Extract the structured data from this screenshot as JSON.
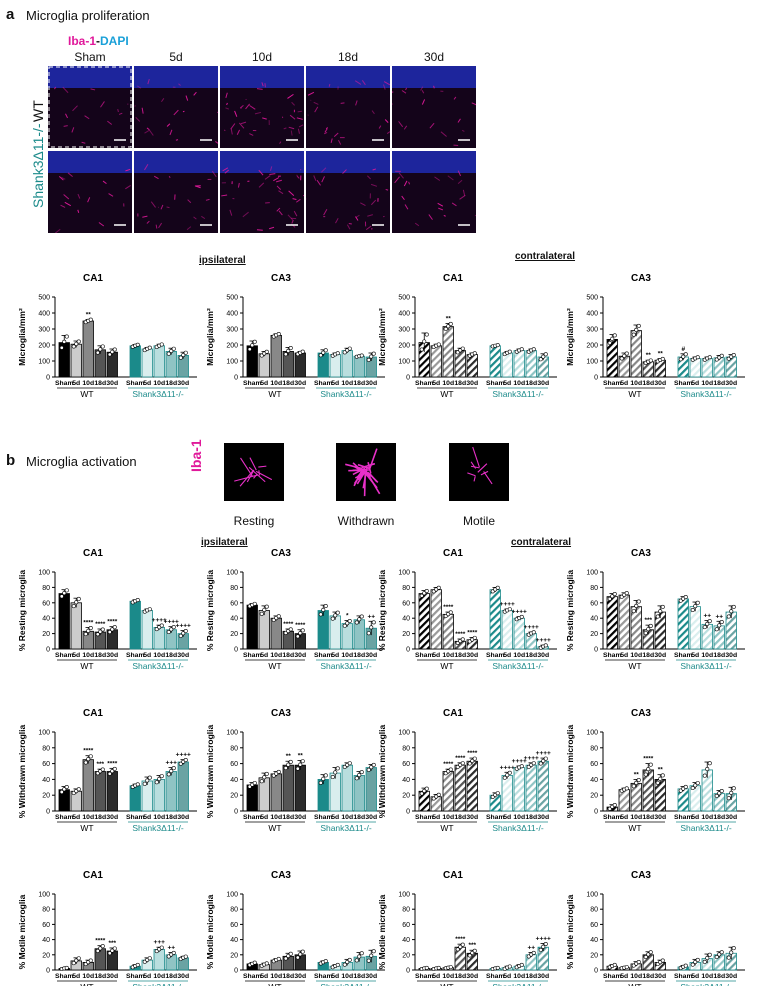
{
  "panel_a": {
    "letter": "a",
    "title": "Microglia proliferation",
    "stain_iba": "Iba-1",
    "stain_sep": "-",
    "stain_dapi": "DAPI",
    "columns": [
      "Sham",
      "5d",
      "10d",
      "18d",
      "30d"
    ],
    "rows": [
      "WT",
      "Shank3Δ11-/-"
    ],
    "region_ipsi": "ipsilateral",
    "region_contra": "contralateral"
  },
  "panel_b": {
    "letter": "b",
    "title": "Microglia activation",
    "stain": "Iba-1",
    "morphologies": [
      "Resting",
      "Withdrawn",
      "Motile"
    ],
    "region_ipsi": "ipsilateral",
    "region_contra": "contralateral"
  },
  "colors": {
    "magenta": "#e0189a",
    "dapi": "#1aa0d8",
    "teal": "#1b8a8a",
    "wt_shades": [
      "#000000",
      "#cccccc",
      "#888888",
      "#555555",
      "#2b2b2b"
    ],
    "ko_shades": [
      "#1b8a8a",
      "#d9eeee",
      "#b9dede",
      "#8fc4c4",
      "#6aa3a3"
    ]
  },
  "chart_data": [
    {
      "type": "bar",
      "title": "CA1",
      "ylabel": "Microglia/mm²",
      "ylim": [
        0,
        500
      ],
      "yticks": [
        0,
        100,
        200,
        300,
        400,
        500
      ],
      "side": "ipsilateral",
      "hatched": false,
      "groups": [
        "WT",
        "Shank3Δ11-/-"
      ],
      "categories": [
        "Sham",
        "5d",
        "10d",
        "18d",
        "30d",
        "Sham",
        "5d",
        "10d",
        "18d",
        "30d"
      ],
      "values": [
        215,
        205,
        350,
        170,
        155,
        195,
        175,
        195,
        160,
        135
      ],
      "errors": [
        45,
        20,
        10,
        25,
        20,
        8,
        10,
        10,
        20,
        20
      ],
      "annotations": [
        "",
        "",
        "**",
        "",
        "",
        "",
        "",
        "",
        "",
        ""
      ]
    },
    {
      "type": "bar",
      "title": "CA3",
      "ylabel": "Microglia/mm²",
      "ylim": [
        0,
        500
      ],
      "yticks": [
        0,
        100,
        200,
        300,
        400,
        500
      ],
      "side": "ipsilateral",
      "hatched": false,
      "groups": [
        "WT",
        "Shank3Δ11-/-"
      ],
      "categories": [
        "Sham",
        "5d",
        "10d",
        "18d",
        "30d",
        "Sham",
        "5d",
        "10d",
        "18d",
        "30d"
      ],
      "values": [
        195,
        145,
        260,
        160,
        150,
        150,
        140,
        165,
        130,
        125
      ],
      "errors": [
        30,
        15,
        10,
        25,
        10,
        20,
        10,
        15,
        5,
        25
      ],
      "annotations": [
        "",
        "",
        "",
        "",
        "",
        "",
        "",
        "",
        "",
        ""
      ]
    },
    {
      "type": "bar",
      "title": "CA1",
      "ylabel": "Microglia/mm²",
      "ylim": [
        0,
        500
      ],
      "yticks": [
        0,
        100,
        200,
        300,
        400,
        500
      ],
      "side": "contralateral",
      "hatched": true,
      "groups": [
        "WT",
        "Shank3Δ11-/-"
      ],
      "categories": [
        "Sham",
        "5d",
        "10d",
        "18d",
        "30d",
        "Sham",
        "5d",
        "10d",
        "18d",
        "30d"
      ],
      "values": [
        215,
        195,
        315,
        165,
        140,
        195,
        150,
        165,
        165,
        125
      ],
      "errors": [
        60,
        10,
        20,
        15,
        10,
        5,
        10,
        10,
        10,
        20
      ],
      "annotations": [
        "",
        "",
        "**",
        "",
        "",
        "",
        "",
        "",
        "",
        ""
      ]
    },
    {
      "type": "bar",
      "title": "CA3",
      "ylabel": "Microglia/mm²",
      "ylim": [
        0,
        500
      ],
      "yticks": [
        0,
        100,
        200,
        300,
        400,
        500
      ],
      "side": "contralateral",
      "hatched": true,
      "groups": [
        "WT",
        "Shank3Δ11-/-"
      ],
      "categories": [
        "Sham",
        "5d",
        "10d",
        "18d",
        "30d",
        "Sham",
        "5d",
        "10d",
        "18d",
        "30d"
      ],
      "values": [
        235,
        130,
        290,
        95,
        105,
        125,
        115,
        115,
        120,
        125
      ],
      "errors": [
        30,
        20,
        35,
        10,
        10,
        20,
        10,
        10,
        15,
        15
      ],
      "annotations": [
        "",
        "",
        "",
        "**",
        "**",
        "#",
        "",
        "",
        "",
        ""
      ]
    },
    {
      "type": "bar",
      "title": "CA1",
      "ylabel": "% Resting microglia",
      "ylim": [
        0,
        100
      ],
      "yticks": [
        0,
        20,
        40,
        60,
        80,
        100
      ],
      "side": "ipsilateral",
      "hatched": false,
      "groups": [
        "WT",
        "Shank3Δ11-/-"
      ],
      "categories": [
        "Sham",
        "5d",
        "10d",
        "18d",
        "30d",
        "Sham",
        "5d",
        "10d",
        "18d",
        "30d"
      ],
      "values": [
        72,
        60,
        23,
        22,
        25,
        62,
        50,
        28,
        25,
        20
      ],
      "errors": [
        5,
        6,
        5,
        4,
        4,
        2,
        2,
        3,
        4,
        4
      ],
      "annotations": [
        "",
        "",
        "****",
        "****",
        "****",
        "",
        "",
        "++++",
        "++++",
        "++++"
      ]
    },
    {
      "type": "bar",
      "title": "CA3",
      "ylabel": "% Resting microglia",
      "ylim": [
        0,
        100
      ],
      "yticks": [
        0,
        20,
        40,
        60,
        80,
        100
      ],
      "side": "ipsilateral",
      "hatched": false,
      "groups": [
        "WT",
        "Shank3Δ11-/-"
      ],
      "categories": [
        "Sham",
        "5d",
        "10d",
        "18d",
        "30d",
        "Sham",
        "5d",
        "10d",
        "18d",
        "30d"
      ],
      "values": [
        57,
        50,
        40,
        23,
        20,
        50,
        43,
        33,
        38,
        27
      ],
      "errors": [
        2,
        6,
        3,
        3,
        5,
        7,
        5,
        4,
        5,
        9
      ],
      "annotations": [
        "",
        "",
        "",
        "****",
        "****",
        "",
        "",
        "*",
        "",
        "++"
      ]
    },
    {
      "type": "bar",
      "title": "CA1",
      "ylabel": "% Resting microglia",
      "ylim": [
        0,
        100
      ],
      "yticks": [
        0,
        20,
        40,
        60,
        80,
        100
      ],
      "side": "contralateral",
      "hatched": true,
      "groups": [
        "WT",
        "Shank3Δ11-/-"
      ],
      "categories": [
        "Sham",
        "5d",
        "10d",
        "18d",
        "30d",
        "Sham",
        "5d",
        "10d",
        "18d",
        "30d"
      ],
      "values": [
        72,
        77,
        45,
        10,
        12,
        77,
        50,
        40,
        20,
        3
      ],
      "errors": [
        4,
        3,
        3,
        3,
        3,
        3,
        2,
        2,
        2,
        2
      ],
      "annotations": [
        "",
        "",
        "****",
        "****",
        "****",
        "",
        "++++",
        "++++",
        "++++",
        "++++"
      ]
    },
    {
      "type": "bar",
      "title": "CA3",
      "ylabel": "% Resting microglia",
      "ylim": [
        0,
        100
      ],
      "yticks": [
        0,
        20,
        40,
        60,
        80,
        100
      ],
      "side": "contralateral",
      "hatched": true,
      "groups": [
        "WT",
        "Shank3Δ11-/-"
      ],
      "categories": [
        "Sham",
        "5d",
        "10d",
        "18d",
        "30d",
        "Sham",
        "5d",
        "10d",
        "18d",
        "30d"
      ],
      "values": [
        68,
        70,
        55,
        25,
        48,
        65,
        55,
        32,
        30,
        48
      ],
      "errors": [
        4,
        3,
        8,
        6,
        8,
        3,
        6,
        5,
        6,
        8
      ],
      "annotations": [
        "",
        "",
        "",
        "***",
        "",
        "",
        "",
        "++",
        "++",
        ""
      ]
    },
    {
      "type": "bar",
      "title": "CA1",
      "ylabel": "% Withdrawn microglia",
      "ylim": [
        0,
        100
      ],
      "yticks": [
        0,
        20,
        40,
        60,
        80,
        100
      ],
      "side": "ipsilateral",
      "hatched": false,
      "groups": [
        "WT",
        "Shank3Δ11-/-"
      ],
      "categories": [
        "Sham",
        "5d",
        "10d",
        "18d",
        "30d",
        "Sham",
        "5d",
        "10d",
        "18d",
        "30d"
      ],
      "values": [
        27,
        25,
        65,
        50,
        50,
        32,
        38,
        40,
        50,
        62
      ],
      "errors": [
        4,
        3,
        5,
        3,
        4,
        2,
        5,
        5,
        5,
        3
      ],
      "annotations": [
        "",
        "",
        "****",
        "***",
        "****",
        "",
        "",
        "",
        "+++",
        "++++"
      ]
    },
    {
      "type": "bar",
      "title": "CA3",
      "ylabel": "% Withdrawn microglia",
      "ylim": [
        0,
        100
      ],
      "yticks": [
        0,
        20,
        40,
        60,
        80,
        100
      ],
      "side": "ipsilateral",
      "hatched": false,
      "groups": [
        "WT",
        "Shank3Δ11-/-"
      ],
      "categories": [
        "Sham",
        "5d",
        "10d",
        "18d",
        "30d",
        "Sham",
        "5d",
        "10d",
        "18d",
        "30d"
      ],
      "values": [
        33,
        42,
        47,
        58,
        58,
        40,
        48,
        58,
        45,
        55
      ],
      "errors": [
        3,
        6,
        3,
        5,
        6,
        6,
        7,
        3,
        5,
        4
      ],
      "annotations": [
        "",
        "",
        "",
        "**",
        "**",
        "",
        "",
        "",
        "",
        ""
      ]
    },
    {
      "type": "bar",
      "title": "CA1",
      "ylabel": "% Withdrawn microglia",
      "ylim": [
        0,
        100
      ],
      "yticks": [
        0,
        20,
        40,
        60,
        80,
        100
      ],
      "side": "contralateral",
      "hatched": true,
      "groups": [
        "WT",
        "Shank3Δ11-/-"
      ],
      "categories": [
        "Sham",
        "5d",
        "10d",
        "18d",
        "30d",
        "Sham",
        "5d",
        "10d",
        "18d",
        "30d"
      ],
      "values": [
        25,
        18,
        50,
        58,
        63,
        20,
        45,
        55,
        58,
        63
      ],
      "errors": [
        4,
        3,
        3,
        3,
        4,
        3,
        4,
        2,
        3,
        4
      ],
      "annotations": [
        "",
        "",
        "****",
        "****",
        "****",
        "",
        "++++",
        "++++",
        "++++",
        "++++"
      ]
    },
    {
      "type": "bar",
      "title": "CA3",
      "ylabel": "% Withdrawn microglia",
      "ylim": [
        0,
        100
      ],
      "yticks": [
        0,
        20,
        40,
        60,
        80,
        100
      ],
      "side": "contralateral",
      "hatched": true,
      "groups": [
        "WT",
        "Shank3Δ11-/-"
      ],
      "categories": [
        "Sham",
        "5d",
        "10d",
        "18d",
        "30d",
        "Sham",
        "5d",
        "10d",
        "18d",
        "30d"
      ],
      "values": [
        5,
        27,
        35,
        52,
        40,
        28,
        32,
        52,
        22,
        22
      ],
      "errors": [
        3,
        2,
        5,
        8,
        6,
        3,
        4,
        10,
        4,
        8
      ],
      "annotations": [
        "",
        "",
        "**",
        "****",
        "**",
        "",
        "",
        "",
        "",
        ""
      ]
    },
    {
      "type": "bar",
      "title": "CA1",
      "ylabel": "% Motile microglia",
      "ylim": [
        0,
        100
      ],
      "yticks": [
        0,
        20,
        40,
        60,
        80,
        100
      ],
      "side": "ipsilateral",
      "hatched": false,
      "groups": [
        "WT",
        "Shank3Δ11-/-"
      ],
      "categories": [
        "Sham",
        "5d",
        "10d",
        "18d",
        "30d",
        "Sham",
        "5d",
        "10d",
        "18d",
        "30d"
      ],
      "values": [
        2,
        12,
        10,
        28,
        25,
        5,
        13,
        27,
        20,
        16
      ],
      "errors": [
        1,
        4,
        3,
        4,
        4,
        2,
        3,
        3,
        3,
        2
      ],
      "annotations": [
        "",
        "",
        "",
        "****",
        "***",
        "",
        "",
        "+++",
        "++",
        ""
      ]
    },
    {
      "type": "bar",
      "title": "CA3",
      "ylabel": "% Motile microglia",
      "ylim": [
        0,
        100
      ],
      "yticks": [
        0,
        20,
        40,
        60,
        80,
        100
      ],
      "side": "ipsilateral",
      "hatched": false,
      "groups": [
        "WT",
        "Shank3Δ11-/-"
      ],
      "categories": [
        "Sham",
        "5d",
        "10d",
        "18d",
        "30d",
        "Sham",
        "5d",
        "10d",
        "18d",
        "30d"
      ],
      "values": [
        8,
        7,
        13,
        18,
        20,
        10,
        5,
        10,
        17,
        18
      ],
      "errors": [
        2,
        2,
        2,
        4,
        5,
        2,
        2,
        4,
        6,
        8
      ],
      "annotations": [
        "",
        "",
        "",
        "",
        "",
        "",
        "",
        "",
        "",
        ""
      ]
    },
    {
      "type": "bar",
      "title": "CA1",
      "ylabel": "% Motile microglia",
      "ylim": [
        0,
        100
      ],
      "yticks": [
        0,
        20,
        40,
        60,
        80,
        100
      ],
      "side": "contralateral",
      "hatched": true,
      "groups": [
        "WT",
        "Shank3Δ11-/-"
      ],
      "categories": [
        "Sham",
        "5d",
        "10d",
        "18d",
        "30d",
        "Sham",
        "5d",
        "10d",
        "18d",
        "30d"
      ],
      "values": [
        2,
        2,
        3,
        30,
        22,
        2,
        3,
        5,
        20,
        30
      ],
      "errors": [
        1,
        1,
        1,
        4,
        4,
        1,
        2,
        2,
        3,
        5
      ],
      "annotations": [
        "",
        "",
        "",
        "****",
        "***",
        "",
        "",
        "",
        "++",
        "++++"
      ]
    },
    {
      "type": "bar",
      "title": "CA3",
      "ylabel": "% Motile microglia",
      "ylim": [
        0,
        100
      ],
      "yticks": [
        0,
        20,
        40,
        60,
        80,
        100
      ],
      "side": "contralateral",
      "hatched": true,
      "groups": [
        "WT",
        "Shank3Δ11-/-"
      ],
      "categories": [
        "Sham",
        "5d",
        "10d",
        "18d",
        "30d",
        "Sham",
        "5d",
        "10d",
        "18d",
        "30d"
      ],
      "values": [
        5,
        3,
        8,
        20,
        10,
        4,
        10,
        15,
        20,
        22
      ],
      "errors": [
        2,
        1,
        3,
        4,
        3,
        2,
        4,
        6,
        4,
        8
      ],
      "annotations": [
        "",
        "",
        "",
        "",
        "",
        "",
        "",
        "",
        "",
        ""
      ]
    }
  ]
}
